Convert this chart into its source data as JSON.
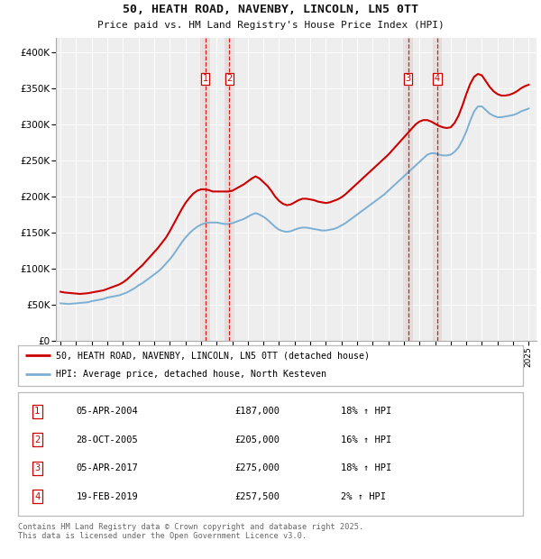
{
  "title": "50, HEATH ROAD, NAVENBY, LINCOLN, LN5 0TT",
  "subtitle": "Price paid vs. HM Land Registry's House Price Index (HPI)",
  "ylim": [
    0,
    420000
  ],
  "yticks": [
    0,
    50000,
    100000,
    150000,
    200000,
    250000,
    300000,
    350000,
    400000
  ],
  "ytick_labels": [
    "£0",
    "£50K",
    "£100K",
    "£150K",
    "£200K",
    "£250K",
    "£300K",
    "£350K",
    "£400K"
  ],
  "xlim_start": 1994.7,
  "xlim_end": 2025.5,
  "background_color": "#ffffff",
  "plot_bg_color": "#eeeeee",
  "grid_color": "#ffffff",
  "red_line_color": "#cc0000",
  "blue_line_color": "#7bafd4",
  "transactions": [
    {
      "num": 1,
      "date": "05-APR-2004",
      "year": 2004.27,
      "price": 187000,
      "pct": "18%",
      "dir": "↑"
    },
    {
      "num": 2,
      "date": "28-OCT-2005",
      "year": 2005.82,
      "price": 205000,
      "pct": "16%",
      "dir": "↑"
    },
    {
      "num": 3,
      "date": "05-APR-2017",
      "year": 2017.27,
      "price": 275000,
      "pct": "18%",
      "dir": "↑"
    },
    {
      "num": 4,
      "date": "19-FEB-2019",
      "year": 2019.13,
      "price": 257500,
      "pct": "2%",
      "dir": "↑"
    }
  ],
  "legend_house": "50, HEATH ROAD, NAVENBY, LINCOLN, LN5 0TT (detached house)",
  "legend_hpi": "HPI: Average price, detached house, North Kesteven",
  "footer": "Contains HM Land Registry data © Crown copyright and database right 2025.\nThis data is licensed under the Open Government Licence v3.0.",
  "hpi_values": [
    52000,
    51500,
    51000,
    51500,
    52000,
    52500,
    53000,
    53500,
    55000,
    56000,
    57000,
    58000,
    60000,
    61000,
    62000,
    63000,
    65000,
    67000,
    70000,
    73000,
    77000,
    80000,
    84000,
    88000,
    92000,
    96000,
    101000,
    107000,
    113000,
    120000,
    128000,
    136000,
    143000,
    149000,
    154000,
    158000,
    161000,
    163000,
    164000,
    164000,
    164000,
    163000,
    162000,
    162000,
    163000,
    165000,
    167000,
    169000,
    172000,
    175000,
    177000,
    175000,
    172000,
    168000,
    163000,
    158000,
    154000,
    152000,
    151000,
    152000,
    154000,
    156000,
    157000,
    157000,
    156000,
    155000,
    154000,
    153000,
    153000,
    154000,
    155000,
    157000,
    160000,
    163000,
    167000,
    171000,
    175000,
    179000,
    183000,
    187000,
    191000,
    195000,
    199000,
    203000,
    208000,
    213000,
    218000,
    223000,
    228000,
    233000,
    238000,
    243000,
    248000,
    253000,
    258000,
    260000,
    260000,
    258000,
    257000,
    257000,
    258000,
    262000,
    268000,
    278000,
    290000,
    305000,
    318000,
    325000,
    325000,
    320000,
    315000,
    312000,
    310000,
    310000,
    311000,
    312000,
    313000,
    315000,
    318000,
    320000,
    322000
  ],
  "house_values": [
    68000,
    67000,
    66500,
    66000,
    65500,
    65000,
    65500,
    66000,
    67000,
    68000,
    69000,
    70000,
    72000,
    74000,
    76000,
    78000,
    81000,
    85000,
    90000,
    95000,
    100000,
    105000,
    111000,
    117000,
    123000,
    129000,
    136000,
    143000,
    152000,
    162000,
    172000,
    182000,
    191000,
    198000,
    204000,
    208000,
    210000,
    210000,
    209000,
    207000,
    207000,
    207000,
    207000,
    207000,
    208000,
    211000,
    214000,
    217000,
    221000,
    225000,
    228000,
    225000,
    220000,
    215000,
    208000,
    200000,
    194000,
    190000,
    188000,
    189000,
    192000,
    195000,
    197000,
    197000,
    196000,
    195000,
    193000,
    192000,
    191000,
    192000,
    194000,
    196000,
    199000,
    203000,
    208000,
    213000,
    218000,
    223000,
    228000,
    233000,
    238000,
    243000,
    248000,
    253000,
    258000,
    264000,
    270000,
    276000,
    282000,
    288000,
    294000,
    300000,
    304000,
    306000,
    306000,
    304000,
    301000,
    298000,
    296000,
    295000,
    296000,
    302000,
    312000,
    326000,
    342000,
    356000,
    366000,
    370000,
    368000,
    360000,
    352000,
    346000,
    342000,
    340000,
    340000,
    341000,
    343000,
    346000,
    350000,
    353000,
    355000
  ]
}
